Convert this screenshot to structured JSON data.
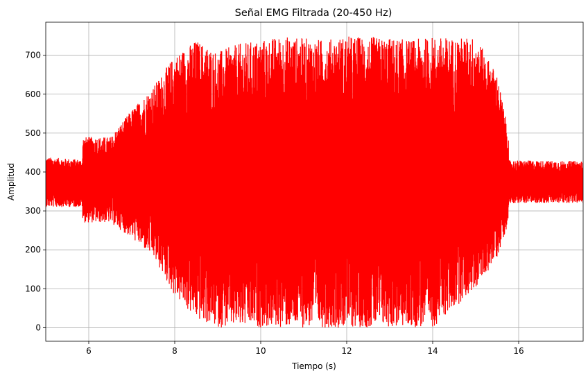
{
  "chart_data": {
    "type": "line",
    "title": "Señal EMG Filtrada (20-450 Hz)",
    "xlabel": "Tiempo (s)",
    "ylabel": "Amplitud",
    "xlim": [
      5.0,
      17.5
    ],
    "ylim": [
      -35,
      785
    ],
    "xticks": [
      6,
      8,
      10,
      12,
      14,
      16
    ],
    "yticks": [
      0,
      100,
      200,
      300,
      400,
      500,
      600,
      700
    ],
    "grid": true,
    "series": [
      {
        "color": "#ff0000",
        "envelope": {
          "t": [
            5.0,
            5.85,
            5.86,
            6.5,
            7.0,
            7.5,
            8.0,
            8.5,
            9.0,
            9.5,
            10.0,
            10.5,
            11.0,
            11.5,
            12.0,
            12.5,
            13.0,
            13.5,
            14.0,
            14.5,
            15.0,
            15.5,
            15.76,
            15.77,
            17.5
          ],
          "max": [
            438,
            432,
            490,
            490,
            560,
            620,
            700,
            740,
            710,
            730,
            740,
            750,
            745,
            740,
            750,
            748,
            745,
            740,
            748,
            745,
            748,
            650,
            505,
            430,
            428
          ],
          "min": [
            310,
            310,
            270,
            270,
            230,
            180,
            80,
            20,
            0,
            0,
            0,
            0,
            0,
            0,
            0,
            0,
            0,
            0,
            0,
            50,
            100,
            180,
            270,
            320,
            320
          ]
        }
      }
    ]
  }
}
